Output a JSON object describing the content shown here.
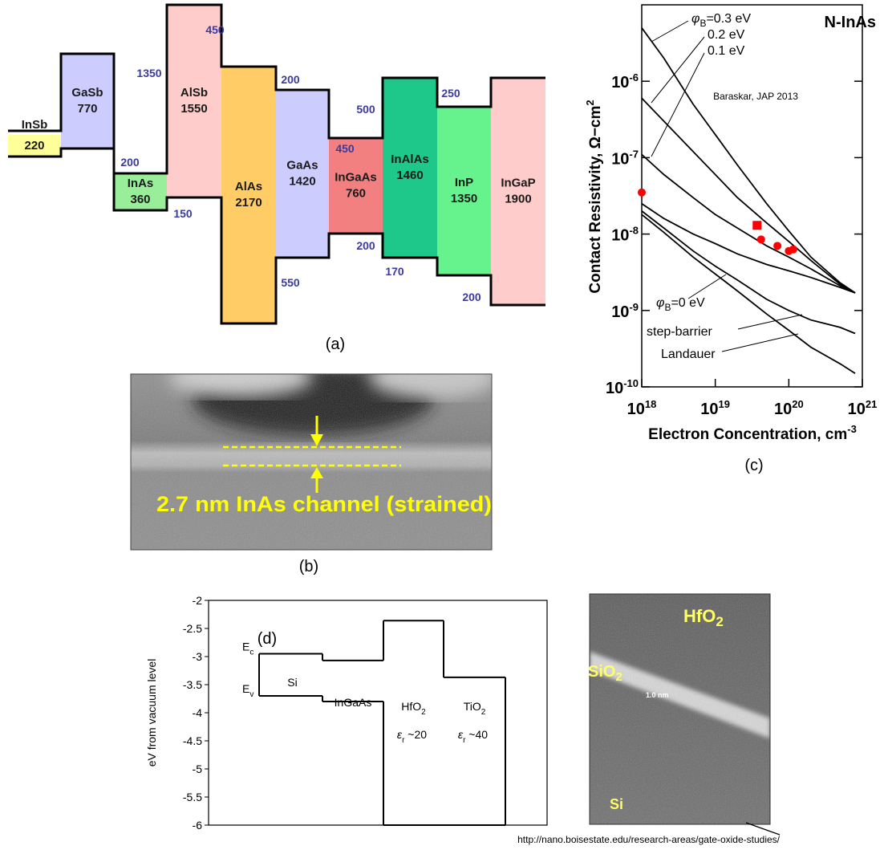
{
  "panel_a": {
    "caption": "(a)",
    "blocks": [
      {
        "name": "InSb",
        "gap": "220"
      },
      {
        "name": "GaSb",
        "gap": "770"
      },
      {
        "name": "InAs",
        "gap": "360"
      },
      {
        "name": "AlSb",
        "gap": "1550"
      },
      {
        "name": "AlAs",
        "gap": "2170"
      },
      {
        "name": "GaAs",
        "gap": "1420"
      },
      {
        "name": "InGaAs",
        "gap": "760"
      },
      {
        "name": "InAlAs",
        "gap": "1460"
      },
      {
        "name": "InP",
        "gap": "1350"
      },
      {
        "name": "InGaP",
        "gap": "1900"
      }
    ],
    "offsets": [
      "1350",
      "450",
      "200",
      "150",
      "200",
      "550",
      "500",
      "450",
      "200",
      "170",
      "250",
      "200"
    ]
  },
  "panel_b": {
    "caption": "(b)",
    "label": "2.7 nm InAs channel (strained)"
  },
  "chart_data": [
    {
      "type": "line",
      "title": "N-InAs",
      "caption": "(c)",
      "note": "Baraskar, JAP 2013",
      "x_label": {
        "text": "Electron Concentration, cm",
        "sup": "-3"
      },
      "y_label": {
        "text": "Contact Resistivity, Ω−cm",
        "sup": "2"
      },
      "log_x": true,
      "log_y": true,
      "xlim": [
        1e+18,
        1e+21
      ],
      "ylim": [
        1e-10,
        1e-05
      ],
      "xticks": [
        {
          "value": 1e+18,
          "base": "10",
          "exp": "18"
        },
        {
          "value": 1e+19,
          "base": "10",
          "exp": "19"
        },
        {
          "value": 1e+20,
          "base": "10",
          "exp": "20"
        },
        {
          "value": 1e+21,
          "base": "10",
          "exp": "21"
        }
      ],
      "yticks": [
        {
          "value": 1e-10,
          "base": "10",
          "exp": "-10"
        },
        {
          "value": 1e-09,
          "base": "10",
          "exp": "-9"
        },
        {
          "value": 1e-08,
          "base": "10",
          "exp": "-8"
        },
        {
          "value": 1e-07,
          "base": "10",
          "exp": "-7"
        },
        {
          "value": 1e-06,
          "base": "10",
          "exp": "-6"
        }
      ],
      "x": [
        1e+18,
        2e+18,
        5e+18,
        1e+19,
        2e+19,
        5e+19,
        1e+20,
        2e+20,
        5e+20,
        8e+20
      ],
      "series": [
        {
          "color": "#000000",
          "values": [
            5e-06,
            2e-06,
            5e-07,
            2e-07,
            8e-08,
            2.5e-08,
            1.1e-08,
            5e-09,
            2.3e-09,
            1.7e-09
          ],
          "label": {
            "symbol": "φ",
            "sub": "B",
            "text": "=0.3 eV"
          }
        },
        {
          "color": "#000000",
          "values": [
            6e-07,
            3e-07,
            1.2e-07,
            6e-08,
            3e-08,
            1.4e-08,
            8e-09,
            4.5e-09,
            2.2e-09,
            1.7e-09
          ],
          "label": {
            "text": "0.2 eV"
          }
        },
        {
          "color": "#000000",
          "values": [
            1.1e-07,
            6e-08,
            3e-08,
            1.8e-08,
            1.2e-08,
            7e-09,
            5e-09,
            3.5e-09,
            2.1e-09,
            1.7e-09
          ],
          "label": {
            "text": "0.1 eV"
          }
        },
        {
          "color": "#000000",
          "values": [
            2.5e-08,
            1.6e-08,
            1e-08,
            7.5e-09,
            5.5e-09,
            4e-09,
            3.3e-09,
            2.7e-09,
            2e-09,
            1.7e-09
          ],
          "label": {
            "symbol": "φ",
            "sub": "B",
            "text": "=0 eV"
          }
        },
        {
          "color": "#000000",
          "values": [
            2e-08,
            1.2e-08,
            6e-09,
            3.8e-09,
            2.5e-09,
            1.4e-09,
            1e-09,
            7.5e-10,
            6e-10,
            5e-10
          ],
          "label": {
            "text": "step-barrier"
          }
        },
        {
          "color": "#000000",
          "values": [
            1.8e-08,
            1.05e-08,
            5e-09,
            3e-09,
            1.8e-09,
            9e-10,
            5.5e-10,
            3.3e-10,
            2e-10,
            1.5e-10
          ],
          "label": {
            "text": "Landauer"
          }
        }
      ],
      "points": [
        {
          "marker": "circle",
          "color": "#ff0000",
          "x": [
            1e+18,
            4.2e+19,
            7e+19,
            1e+20,
            1.15e+20
          ],
          "values": [
            3.5e-08,
            8.5e-09,
            7e-09,
            6e-09,
            6.3e-09
          ]
        },
        {
          "marker": "square",
          "color": "#ff0000",
          "x": [
            3.7e+19
          ],
          "values": [
            1.3e-08
          ]
        }
      ]
    },
    {
      "type": "step",
      "caption": "(d)",
      "y_label": "eV from vacuum level",
      "ylim": [
        -6,
        -2
      ],
      "yticks": [
        -2,
        -2.5,
        -3,
        -3.5,
        -4,
        -4.5,
        -5,
        -5.5,
        -6
      ],
      "categories": [
        {
          "text": "Si"
        },
        {
          "text": "InGaAs"
        },
        {
          "text": "HfO",
          "sub": "2"
        },
        {
          "text": "TiO",
          "sub": "2"
        }
      ],
      "permittivity": [
        null,
        null,
        {
          "symbol": "ε",
          "sub": "r",
          "text": " ~20"
        },
        {
          "symbol": "ε",
          "sub": "r",
          "text": " ~40"
        }
      ],
      "series": [
        {
          "label": {
            "text": "E",
            "sub": "c"
          },
          "color": "#000000",
          "values": [
            -2.95,
            -3.07,
            -2.36,
            -3.37
          ]
        },
        {
          "label": {
            "text": "E",
            "sub": "v"
          },
          "color": "#000000",
          "values": [
            -3.7,
            -3.8,
            -6,
            -6
          ]
        }
      ]
    }
  ],
  "tem_image": {
    "labels": [
      {
        "text": "HfO",
        "sub": "2"
      },
      {
        "text": "SiO",
        "sub": "2"
      },
      {
        "text": "1.0 nm"
      },
      {
        "text": "Si"
      }
    ],
    "source": "http://nano.boisestate.edu/research-areas/gate-oxide-studies/"
  }
}
